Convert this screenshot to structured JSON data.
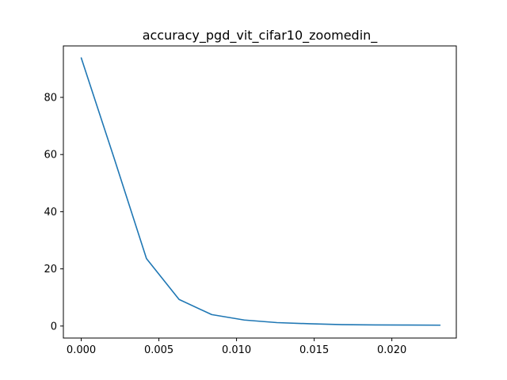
{
  "chart_data": {
    "type": "line",
    "title": "accuracy_pgd_vit_cifar10_zoomedin_",
    "xlabel": "",
    "ylabel": "",
    "xlim": [
      -0.00115,
      0.02415
    ],
    "ylim": [
      -4.2,
      98.0
    ],
    "grid": false,
    "legend": "none",
    "x_ticks": [
      0.0,
      0.005,
      0.01,
      0.015,
      0.02
    ],
    "x_tick_labels": [
      "0.000",
      "0.005",
      "0.010",
      "0.015",
      "0.020"
    ],
    "y_ticks": [
      0,
      20,
      40,
      60,
      80
    ],
    "y_tick_labels": [
      "0",
      "20",
      "40",
      "60",
      "80"
    ],
    "series": [
      {
        "color": "#1f77b4",
        "x": [
          0.0,
          0.0021,
          0.0042,
          0.0063,
          0.0084,
          0.0105,
          0.0126,
          0.0147,
          0.0168,
          0.0189,
          0.021,
          0.0231
        ],
        "y": [
          93.8,
          59.0,
          23.6,
          9.3,
          4.0,
          2.1,
          1.2,
          0.8,
          0.5,
          0.4,
          0.35,
          0.3
        ]
      }
    ]
  }
}
